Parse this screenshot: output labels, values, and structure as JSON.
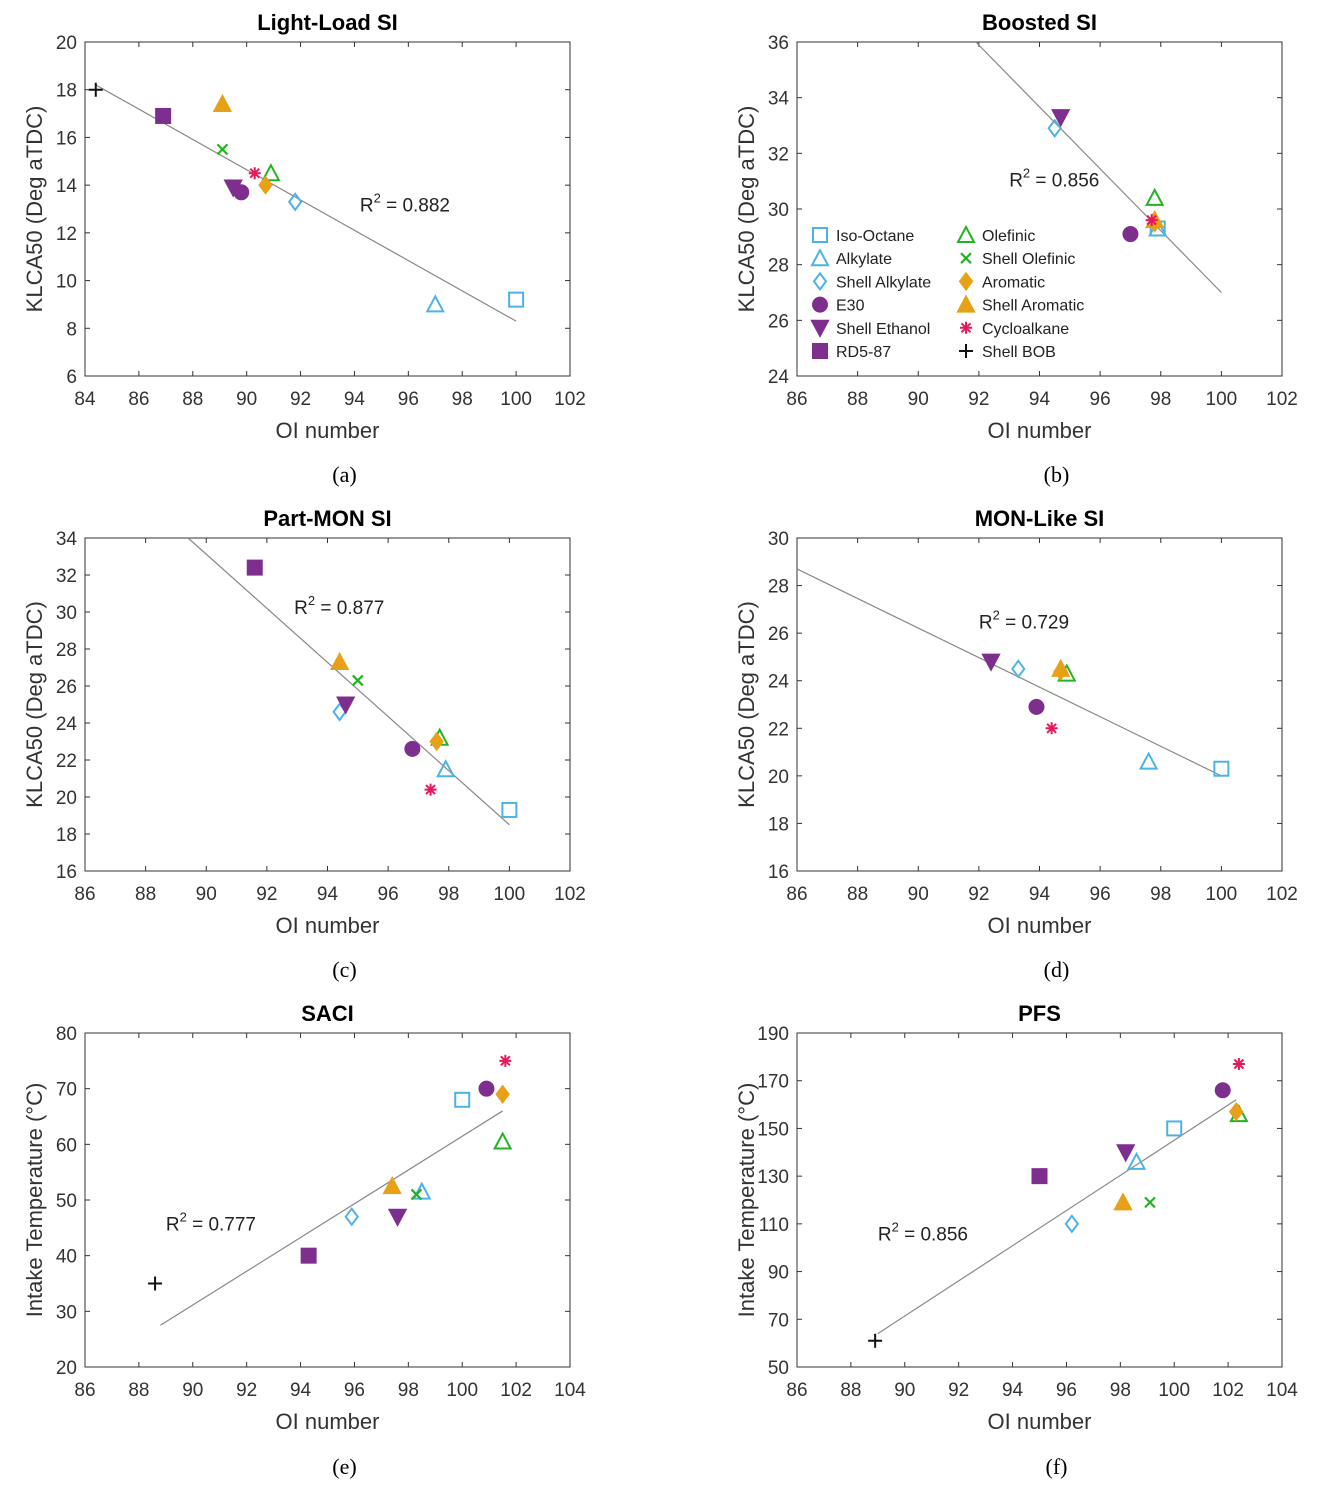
{
  "marker_styles": {
    "Iso-Octane": {
      "shape": "square",
      "color": "#4db3e6",
      "filled": false
    },
    "Alkylate": {
      "shape": "triangle",
      "color": "#4db3e6",
      "filled": false
    },
    "Shell Alkylate": {
      "shape": "diamond",
      "color": "#4db3e6",
      "filled": false
    },
    "E30": {
      "shape": "circle",
      "color": "#7e2f8e",
      "filled": true
    },
    "Shell Ethanol": {
      "shape": "tri-down",
      "color": "#7e2f8e",
      "filled": true
    },
    "RD5-87": {
      "shape": "square",
      "color": "#7e2f8e",
      "filled": true
    },
    "Olefinic": {
      "shape": "triangle",
      "color": "#22b322",
      "filled": false
    },
    "Shell Olefinic": {
      "shape": "x",
      "color": "#22b322",
      "filled": false
    },
    "Aromatic": {
      "shape": "diamond",
      "color": "#e6a117",
      "filled": true
    },
    "Shell Aromatic": {
      "shape": "triangle",
      "color": "#e6a117",
      "filled": true
    },
    "Cycloalkane": {
      "shape": "asterisk",
      "color": "#e6195a",
      "filled": false
    },
    "Shell BOB": {
      "shape": "plus",
      "color": "#111111",
      "filled": false
    }
  },
  "legend_entries": [
    "Iso-Octane",
    "Alkylate",
    "Shell Alkylate",
    "E30",
    "Shell Ethanol",
    "RD5-87",
    "Olefinic",
    "Shell Olefinic",
    "Aromatic",
    "Shell Aromatic",
    "Cycloalkane",
    "Shell BOB"
  ],
  "chart_data": [
    {
      "type": "scatter",
      "panel": "a",
      "caption": "(a)",
      "title": "Light-Load SI",
      "xlabel": "OI number",
      "ylabel": "KLCA50 (Deg aTDC)",
      "xlim": [
        84,
        102
      ],
      "xticks": [
        84,
        86,
        88,
        90,
        92,
        94,
        96,
        98,
        100,
        102
      ],
      "ylim": [
        6,
        20
      ],
      "yticks": [
        6,
        8,
        10,
        12,
        14,
        16,
        18,
        20
      ],
      "r2_label": "R",
      "r2_sup": "2",
      "r2_value": " = 0.882",
      "r2_pos": [
        94.2,
        12.9
      ],
      "fit_line": [
        [
          84.4,
          18.2
        ],
        [
          100,
          8.3
        ]
      ],
      "points": [
        {
          "fuel": "Iso-Octane",
          "x": 100.0,
          "y": 9.2
        },
        {
          "fuel": "Alkylate",
          "x": 97.0,
          "y": 9.0
        },
        {
          "fuel": "Shell Alkylate",
          "x": 91.8,
          "y": 13.3
        },
        {
          "fuel": "E30",
          "x": 89.8,
          "y": 13.7
        },
        {
          "fuel": "Shell Ethanol",
          "x": 89.5,
          "y": 13.9
        },
        {
          "fuel": "RD5-87",
          "x": 86.9,
          "y": 16.9
        },
        {
          "fuel": "Olefinic",
          "x": 90.9,
          "y": 14.5
        },
        {
          "fuel": "Shell Olefinic",
          "x": 89.1,
          "y": 15.5
        },
        {
          "fuel": "Aromatic",
          "x": 90.7,
          "y": 14.0
        },
        {
          "fuel": "Shell Aromatic",
          "x": 89.1,
          "y": 17.4
        },
        {
          "fuel": "Cycloalkane",
          "x": 90.3,
          "y": 14.5
        },
        {
          "fuel": "Shell BOB",
          "x": 84.4,
          "y": 18.0
        }
      ]
    },
    {
      "type": "scatter",
      "panel": "b",
      "caption": "(b)",
      "title": "Boosted SI",
      "xlabel": "OI number",
      "ylabel": "KLCA50 (Deg aTDC)",
      "xlim": [
        86,
        102
      ],
      "xticks": [
        86,
        88,
        90,
        92,
        94,
        96,
        98,
        100,
        102
      ],
      "ylim": [
        24,
        36
      ],
      "yticks": [
        24,
        26,
        28,
        30,
        32,
        34,
        36
      ],
      "r2_label": "R",
      "r2_sup": "2",
      "r2_value": " = 0.856",
      "r2_pos": [
        93.0,
        30.8
      ],
      "fit_line": [
        [
          91.9,
          36.0
        ],
        [
          100,
          27.0
        ]
      ],
      "legend": true,
      "points": [
        {
          "fuel": "Iso-Octane",
          "x": 97.9,
          "y": 29.3
        },
        {
          "fuel": "Alkylate",
          "x": 97.9,
          "y": 29.3
        },
        {
          "fuel": "Shell Alkylate",
          "x": 94.5,
          "y": 32.9
        },
        {
          "fuel": "E30",
          "x": 97.0,
          "y": 29.1
        },
        {
          "fuel": "Shell Ethanol",
          "x": 94.7,
          "y": 33.3
        },
        {
          "fuel": "Olefinic",
          "x": 97.8,
          "y": 30.4
        },
        {
          "fuel": "Aromatic",
          "x": 97.8,
          "y": 29.5
        },
        {
          "fuel": "Shell Aromatic",
          "x": 97.8,
          "y": 29.6
        },
        {
          "fuel": "Cycloalkane",
          "x": 97.7,
          "y": 29.6
        }
      ]
    },
    {
      "type": "scatter",
      "panel": "c",
      "caption": "(c)",
      "title": "Part-MON SI",
      "xlabel": "OI number",
      "ylabel": "KLCA50 (Deg aTDC)",
      "xlim": [
        86,
        102
      ],
      "xticks": [
        86,
        88,
        90,
        92,
        94,
        96,
        98,
        100,
        102
      ],
      "ylim": [
        16,
        34
      ],
      "yticks": [
        16,
        18,
        20,
        22,
        24,
        26,
        28,
        30,
        32,
        34
      ],
      "r2_label": "R",
      "r2_sup": "2",
      "r2_value": " = 0.877",
      "r2_pos": [
        92.9,
        29.9
      ],
      "fit_line": [
        [
          89.4,
          34.0
        ],
        [
          100,
          18.5
        ]
      ],
      "points": [
        {
          "fuel": "Iso-Octane",
          "x": 100.0,
          "y": 19.3
        },
        {
          "fuel": "Alkylate",
          "x": 97.9,
          "y": 21.5
        },
        {
          "fuel": "Shell Alkylate",
          "x": 94.4,
          "y": 24.6
        },
        {
          "fuel": "E30",
          "x": 96.8,
          "y": 22.6
        },
        {
          "fuel": "Shell Ethanol",
          "x": 94.6,
          "y": 25.0
        },
        {
          "fuel": "RD5-87",
          "x": 91.6,
          "y": 32.4
        },
        {
          "fuel": "Olefinic",
          "x": 97.7,
          "y": 23.2
        },
        {
          "fuel": "Shell Olefinic",
          "x": 95.0,
          "y": 26.3
        },
        {
          "fuel": "Aromatic",
          "x": 97.6,
          "y": 23.0
        },
        {
          "fuel": "Shell Aromatic",
          "x": 94.4,
          "y": 27.3
        },
        {
          "fuel": "Cycloalkane",
          "x": 97.4,
          "y": 20.4
        }
      ]
    },
    {
      "type": "scatter",
      "panel": "d",
      "caption": "(d)",
      "title": "MON-Like SI",
      "xlabel": "OI number",
      "ylabel": "KLCA50 (Deg aTDC)",
      "xlim": [
        86,
        102
      ],
      "xticks": [
        86,
        88,
        90,
        92,
        94,
        96,
        98,
        100,
        102
      ],
      "ylim": [
        16,
        30
      ],
      "yticks": [
        16,
        18,
        20,
        22,
        24,
        26,
        28,
        30
      ],
      "r2_label": "R",
      "r2_sup": "2",
      "r2_value": " = 0.729",
      "r2_pos": [
        92.0,
        26.2
      ],
      "fit_line": [
        [
          86,
          28.7
        ],
        [
          100,
          20.0
        ]
      ],
      "points": [
        {
          "fuel": "Iso-Octane",
          "x": 100.0,
          "y": 20.3
        },
        {
          "fuel": "Alkylate",
          "x": 97.6,
          "y": 20.6
        },
        {
          "fuel": "Shell Alkylate",
          "x": 93.3,
          "y": 24.5
        },
        {
          "fuel": "E30",
          "x": 93.9,
          "y": 22.9
        },
        {
          "fuel": "Shell Ethanol",
          "x": 92.4,
          "y": 24.8
        },
        {
          "fuel": "Olefinic",
          "x": 94.9,
          "y": 24.3
        },
        {
          "fuel": "Aromatic",
          "x": 94.7,
          "y": 24.4
        },
        {
          "fuel": "Shell Aromatic",
          "x": 94.7,
          "y": 24.5
        },
        {
          "fuel": "Cycloalkane",
          "x": 94.4,
          "y": 22.0
        }
      ]
    },
    {
      "type": "scatter",
      "panel": "e",
      "caption": "(e)",
      "title": "SACI",
      "xlabel": "OI number",
      "ylabel": "Intake Temperature (°C)",
      "xlim": [
        86,
        104
      ],
      "xticks": [
        86,
        88,
        90,
        92,
        94,
        96,
        98,
        100,
        102,
        104
      ],
      "ylim": [
        20,
        80
      ],
      "yticks": [
        20,
        30,
        40,
        50,
        60,
        70,
        80
      ],
      "r2_label": "R",
      "r2_sup": "2",
      "r2_value": " = 0.777",
      "r2_pos": [
        89.0,
        44.5
      ],
      "fit_line": [
        [
          88.8,
          27.5
        ],
        [
          101.5,
          66.0
        ]
      ],
      "points": [
        {
          "fuel": "Iso-Octane",
          "x": 100.0,
          "y": 68.0
        },
        {
          "fuel": "Alkylate",
          "x": 98.5,
          "y": 51.5
        },
        {
          "fuel": "Shell Alkylate",
          "x": 95.9,
          "y": 47.0
        },
        {
          "fuel": "E30",
          "x": 100.9,
          "y": 70.0
        },
        {
          "fuel": "Shell Ethanol",
          "x": 97.6,
          "y": 47.0
        },
        {
          "fuel": "RD5-87",
          "x": 94.3,
          "y": 40.0
        },
        {
          "fuel": "Olefinic",
          "x": 101.5,
          "y": 60.5
        },
        {
          "fuel": "Shell Olefinic",
          "x": 98.3,
          "y": 51.0
        },
        {
          "fuel": "Aromatic",
          "x": 101.5,
          "y": 69.0
        },
        {
          "fuel": "Shell Aromatic",
          "x": 97.4,
          "y": 52.5
        },
        {
          "fuel": "Cycloalkane",
          "x": 101.6,
          "y": 75.0
        },
        {
          "fuel": "Shell BOB",
          "x": 88.6,
          "y": 35.0
        }
      ]
    },
    {
      "type": "scatter",
      "panel": "f",
      "caption": "(f)",
      "title": "PFS",
      "xlabel": "OI number",
      "ylabel": "Intake Temperature (°C)",
      "xlim": [
        86,
        104
      ],
      "xticks": [
        86,
        88,
        90,
        92,
        94,
        96,
        98,
        100,
        102,
        104
      ],
      "ylim": [
        50,
        190
      ],
      "yticks": [
        50,
        70,
        90,
        110,
        130,
        150,
        170,
        190
      ],
      "r2_label": "R",
      "r2_sup": "2",
      "r2_value": " = 0.856",
      "r2_pos": [
        89.0,
        103.0
      ],
      "fit_line": [
        [
          89.0,
          64.0
        ],
        [
          102.3,
          162.0
        ]
      ],
      "points": [
        {
          "fuel": "Iso-Octane",
          "x": 100.0,
          "y": 150.0
        },
        {
          "fuel": "Alkylate",
          "x": 98.6,
          "y": 136.0
        },
        {
          "fuel": "Shell Alkylate",
          "x": 96.2,
          "y": 110.0
        },
        {
          "fuel": "E30",
          "x": 101.8,
          "y": 166.0
        },
        {
          "fuel": "Shell Ethanol",
          "x": 98.2,
          "y": 140.0
        },
        {
          "fuel": "RD5-87",
          "x": 95.0,
          "y": 130.0
        },
        {
          "fuel": "Olefinic",
          "x": 102.4,
          "y": 156.0
        },
        {
          "fuel": "Shell Olefinic",
          "x": 99.1,
          "y": 119.0
        },
        {
          "fuel": "Aromatic",
          "x": 102.3,
          "y": 157.0
        },
        {
          "fuel": "Shell Aromatic",
          "x": 98.1,
          "y": 119.0
        },
        {
          "fuel": "Cycloalkane",
          "x": 102.4,
          "y": 177.0
        },
        {
          "fuel": "Shell BOB",
          "x": 88.9,
          "y": 61.0
        }
      ]
    }
  ]
}
